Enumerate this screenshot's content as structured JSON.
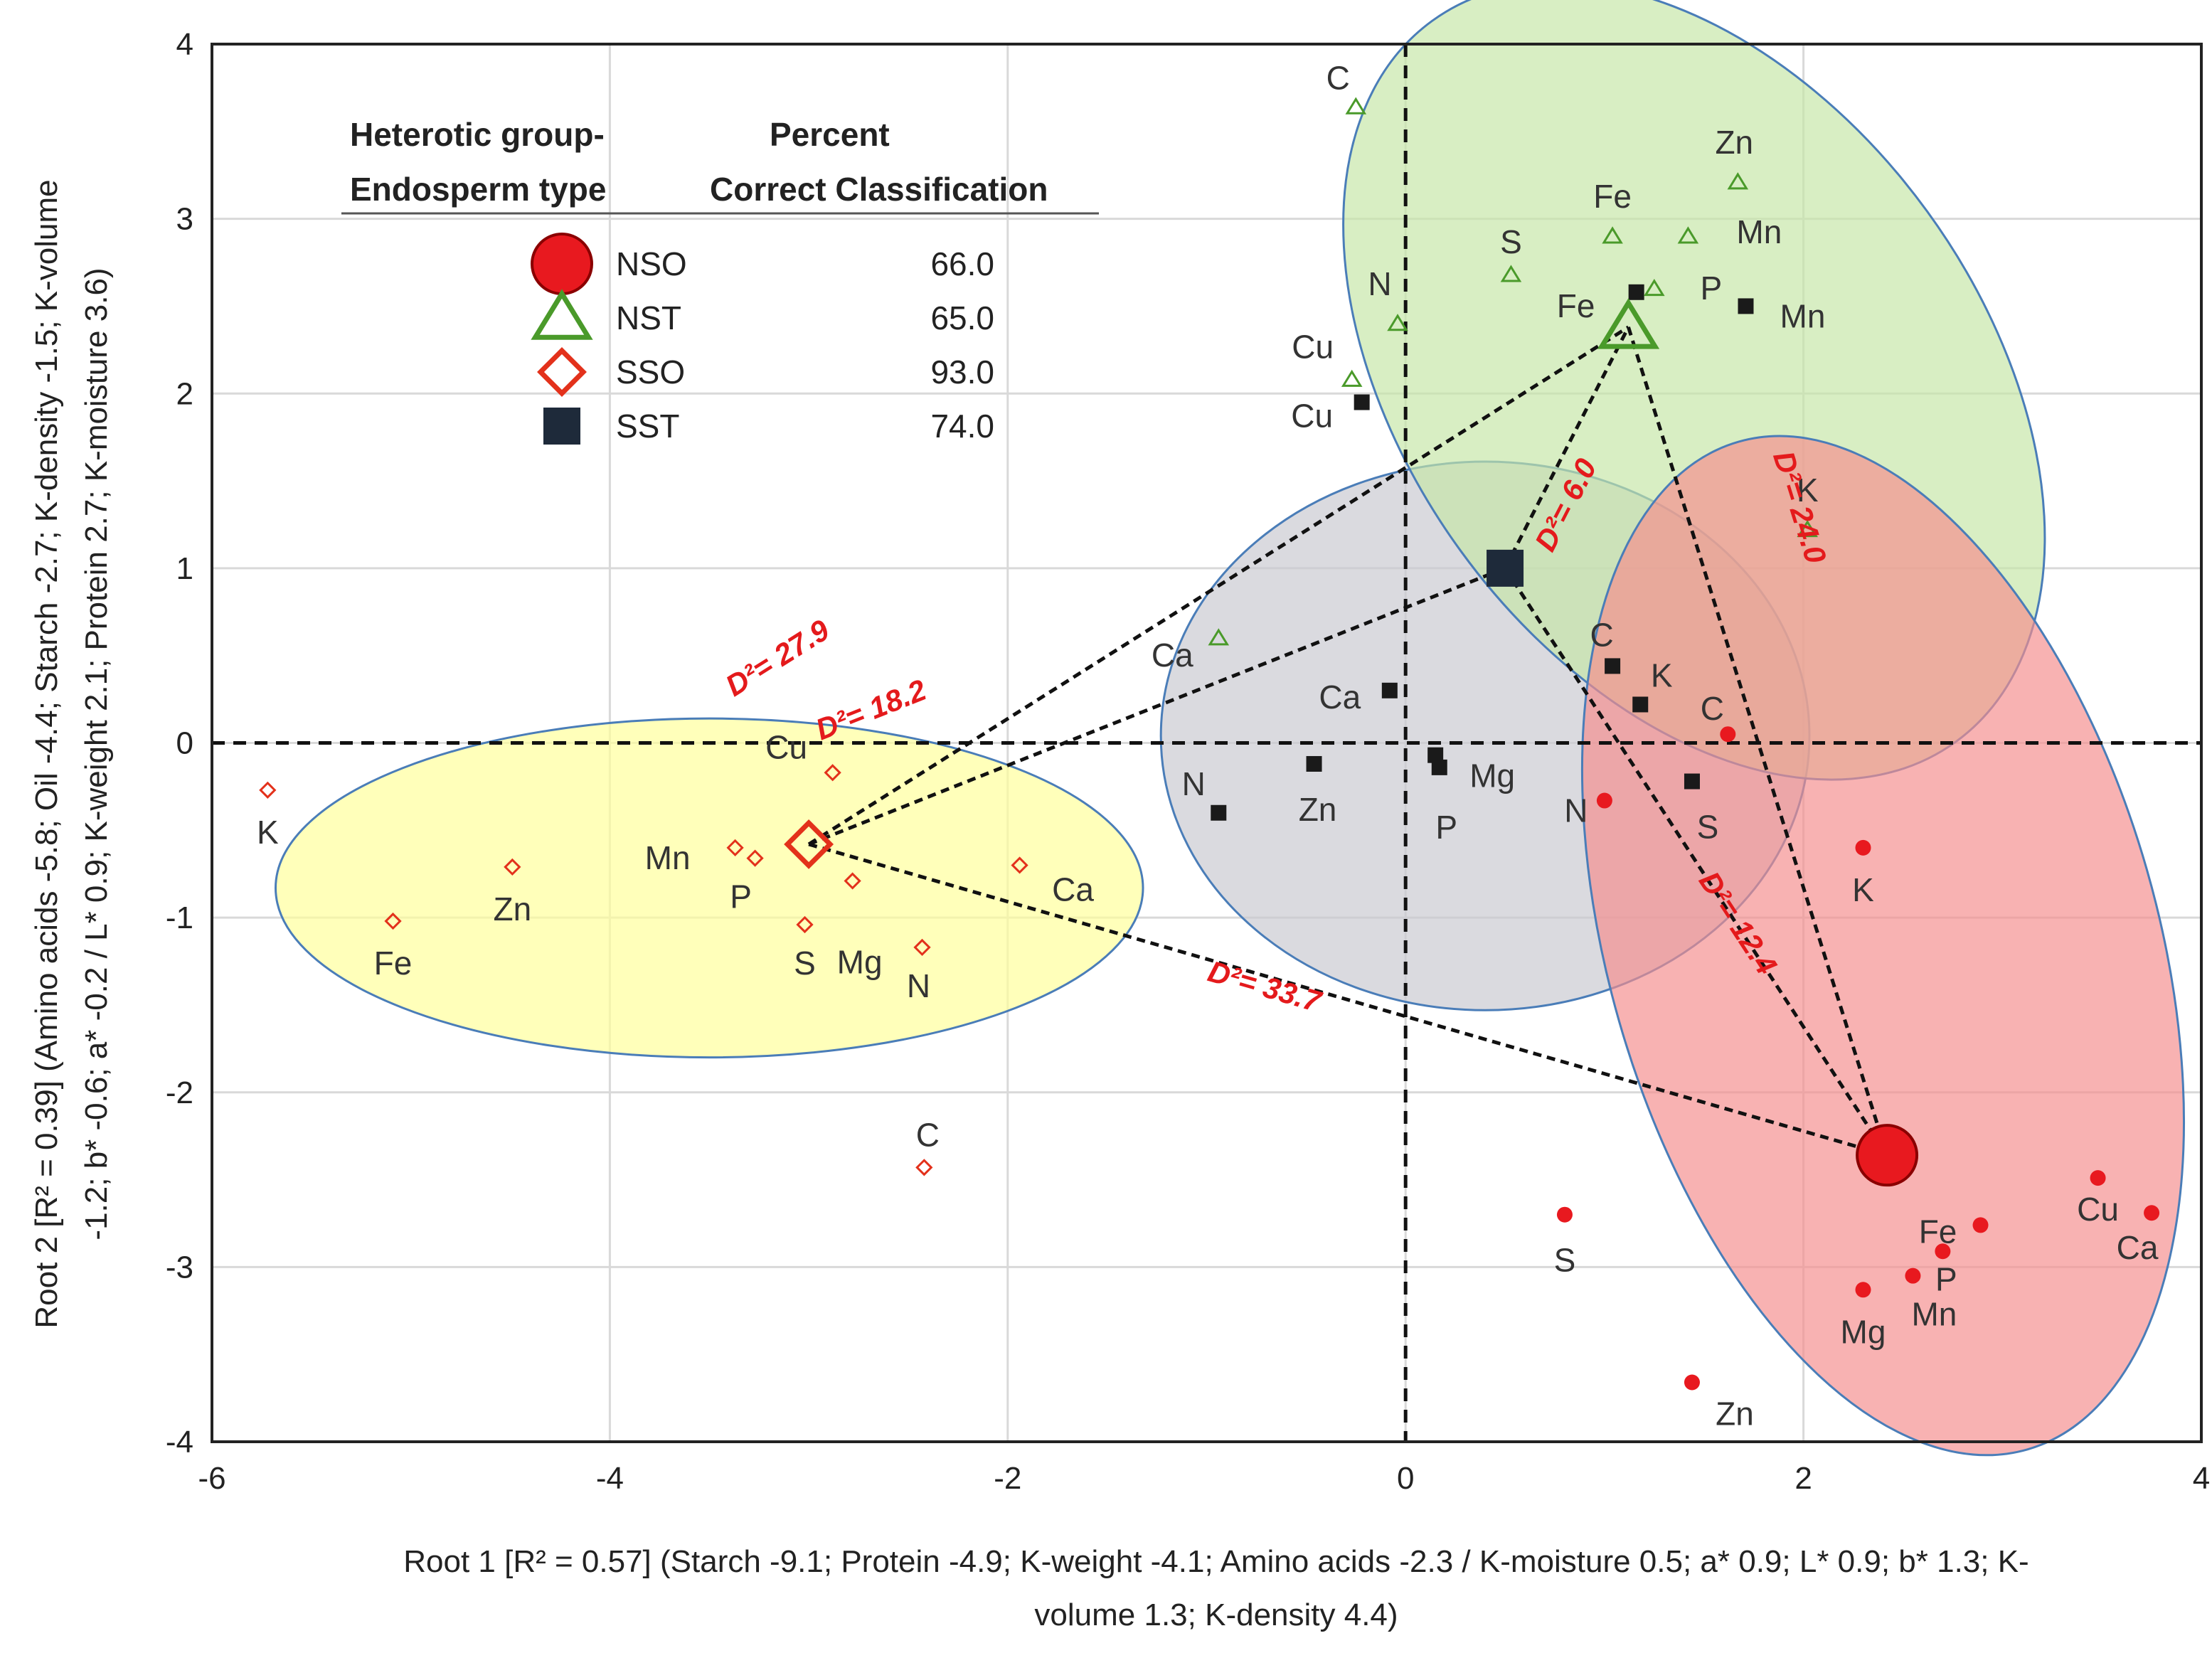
{
  "colors": {
    "NSO": "#e8191f",
    "NST": "#4a9a2a",
    "SSO": "#e3311b",
    "SST": "#1a1a1a",
    "ellipse_SSO": "#ffff99",
    "ellipse_SST": "#c8c8d0",
    "ellipse_NST": "#c6e6a6",
    "ellipse_NSO": "#f58d8d",
    "distance_text": "#e41a1c"
  },
  "chart_data": {
    "type": "scatter",
    "xlabel_line1": "Root 1 [R² = 0.57] (Starch -9.1; Protein -4.9; K-weight -4.1; Amino acids -2.3 / K-moisture 0.5; a* 0.9; L* 0.9; b* 1.3; K-",
    "xlabel_line2": "volume 1.3; K-density 4.4)",
    "ylabel_line1": "Root 2 [R² = 0.39] (Amino acids -5.8; Oil -4.4; Starch -2.7; K-density -1.5; K-volume",
    "ylabel_line2": "-1.2; b* -0.6; a* -0.2 / L* 0.9; K-weight 2.1; Protein 2.7;  K-moisture 3.6)",
    "xlim": [
      -6,
      4
    ],
    "ylim": [
      -4,
      4
    ],
    "xticks": [
      -6,
      -4,
      -2,
      0,
      2,
      4
    ],
    "yticks": [
      -4,
      -3,
      -2,
      -1,
      0,
      1,
      2,
      3,
      4
    ],
    "grid": true,
    "legend": {
      "header_col1_line1": "Heterotic group-",
      "header_col1_line2": "Endosperm type",
      "header_col2_line1": "Percent",
      "header_col2_line2": "Correct Classification",
      "entries": [
        {
          "name": "NSO",
          "value": "66.0"
        },
        {
          "name": "NST",
          "value": "65.0"
        },
        {
          "name": "SSO",
          "value": "93.0"
        },
        {
          "name": "SST",
          "value": "74.0"
        }
      ]
    },
    "centroids": [
      {
        "group": "NSO",
        "x": 2.42,
        "y": -2.36
      },
      {
        "group": "NST",
        "x": 1.12,
        "y": 2.38
      },
      {
        "group": "SSO",
        "x": -3.0,
        "y": -0.58
      },
      {
        "group": "SST",
        "x": 0.5,
        "y": 1.0
      }
    ],
    "distances": [
      {
        "label": "D²= 27.9",
        "from": "SSO",
        "to": "NST"
      },
      {
        "label": "D²= 18.2",
        "from": "SSO",
        "to": "SST"
      },
      {
        "label": "D²= 33.7",
        "from": "SSO",
        "to": "NSO"
      },
      {
        "label": "D²= 6.0",
        "from": "SST",
        "to": "NST"
      },
      {
        "label": "D²= 24.0",
        "from": "NST",
        "to": "NSO"
      },
      {
        "label": "D²= 12.4",
        "from": "SST",
        "to": "NSO"
      }
    ],
    "series": [
      {
        "name": "SSO",
        "points": [
          {
            "label": "K",
            "x": -5.72,
            "y": -0.27
          },
          {
            "label": "Fe",
            "x": -5.09,
            "y": -1.02
          },
          {
            "label": "Zn",
            "x": -4.49,
            "y": -0.71
          },
          {
            "label": "Mn",
            "x": -3.37,
            "y": -0.6
          },
          {
            "label": "P",
            "x": -3.27,
            "y": -0.66
          },
          {
            "label": "Cu",
            "x": -2.88,
            "y": -0.17
          },
          {
            "label": "Mg",
            "x": -2.78,
            "y": -0.79
          },
          {
            "label": "S",
            "x": -3.02,
            "y": -1.04
          },
          {
            "label": "N",
            "x": -2.43,
            "y": -1.17
          },
          {
            "label": "Ca",
            "x": -1.94,
            "y": -0.7
          },
          {
            "label": "C",
            "x": -2.42,
            "y": -2.43
          }
        ]
      },
      {
        "name": "SST",
        "points": [
          {
            "label": "Cu",
            "x": -0.22,
            "y": 1.95
          },
          {
            "label": "Ca",
            "x": -0.08,
            "y": 0.3
          },
          {
            "label": "N",
            "x": -0.94,
            "y": -0.4
          },
          {
            "label": "Zn",
            "x": -0.46,
            "y": -0.12
          },
          {
            "label": "P",
            "x": 0.17,
            "y": -0.14
          },
          {
            "label": "Mg",
            "x": 0.15,
            "y": -0.07
          },
          {
            "label": "C",
            "x": 1.04,
            "y": 0.44
          },
          {
            "label": "K",
            "x": 1.18,
            "y": 0.22
          },
          {
            "label": "S",
            "x": 1.44,
            "y": -0.22
          },
          {
            "label": "Fe",
            "x": 1.16,
            "y": 2.58
          },
          {
            "label": "Mn",
            "x": 1.71,
            "y": 2.5
          }
        ]
      },
      {
        "name": "NST",
        "points": [
          {
            "label": "C",
            "x": -0.25,
            "y": 3.64
          },
          {
            "label": "Zn",
            "x": 1.67,
            "y": 3.21
          },
          {
            "label": "Fe",
            "x": 1.04,
            "y": 2.9
          },
          {
            "label": "Mn",
            "x": 1.42,
            "y": 2.9
          },
          {
            "label": "S",
            "x": 0.53,
            "y": 2.68
          },
          {
            "label": "P",
            "x": 1.25,
            "y": 2.6
          },
          {
            "label": "N",
            "x": -0.04,
            "y": 2.4
          },
          {
            "label": "Cu",
            "x": -0.27,
            "y": 2.08
          },
          {
            "label": "Ca",
            "x": -0.94,
            "y": 0.6
          },
          {
            "label": "K",
            "x": 2.02,
            "y": 1.22
          }
        ]
      },
      {
        "name": "NSO",
        "points": [
          {
            "label": "C",
            "x": 1.62,
            "y": 0.05
          },
          {
            "label": "N",
            "x": 1.0,
            "y": -0.33
          },
          {
            "label": "K",
            "x": 2.3,
            "y": -0.6
          },
          {
            "label": "S",
            "x": 0.8,
            "y": -2.7
          },
          {
            "label": "Zn",
            "x": 1.44,
            "y": -3.66
          },
          {
            "label": "Cu",
            "x": 3.48,
            "y": -2.49
          },
          {
            "label": "Ca",
            "x": 3.75,
            "y": -2.69
          },
          {
            "label": "Fe",
            "x": 2.89,
            "y": -2.76
          },
          {
            "label": "P",
            "x": 2.7,
            "y": -2.91
          },
          {
            "label": "Mn",
            "x": 2.55,
            "y": -3.05
          },
          {
            "label": "Mg",
            "x": 2.3,
            "y": -3.13
          }
        ]
      }
    ]
  }
}
